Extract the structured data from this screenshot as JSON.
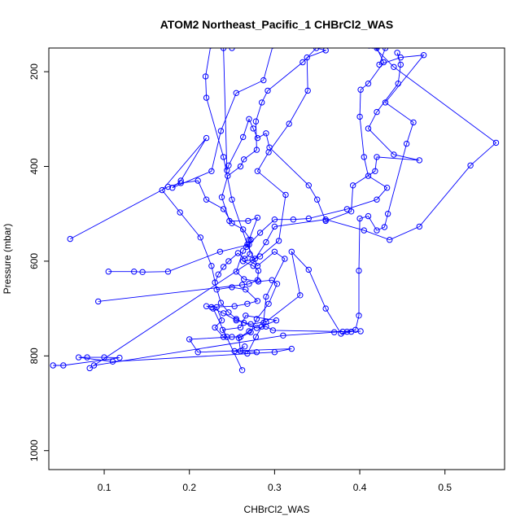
{
  "chart_data": {
    "type": "line",
    "title": "ATOM2 Northeast_Pacific_1 CHBrCl2_WAS",
    "xlabel": "CHBrCl2_WAS",
    "ylabel": "Pressure (mbar)",
    "xlim": [
      0.035,
      0.57
    ],
    "ylim": [
      1040,
      150
    ],
    "y_axis_reversed": true,
    "x_ticks": [
      0.1,
      0.2,
      0.3,
      0.4,
      0.5
    ],
    "x_tick_labels": [
      "0.1",
      "0.2",
      "0.3",
      "0.4",
      "0.5"
    ],
    "y_ticks": [
      200,
      400,
      600,
      800,
      1000
    ],
    "y_tick_labels": [
      "200",
      "400",
      "600",
      "800",
      "1000"
    ],
    "grid": false,
    "legend": "none",
    "marker": "open-circle",
    "color": "#0000ff",
    "series": [
      {
        "values": [
          [
            0.04,
            820
          ],
          [
            0.052,
            820
          ],
          [
            0.118,
            804
          ],
          [
            0.1,
            803
          ],
          [
            0.08,
            803
          ],
          [
            0.07,
            803
          ],
          [
            0.11,
            812
          ],
          [
            0.3,
            792
          ],
          [
            0.32,
            785
          ],
          [
            0.21,
            792
          ],
          [
            0.2,
            765
          ],
          [
            0.25,
            760
          ],
          [
            0.24,
            760
          ],
          [
            0.23,
            740
          ],
          [
            0.238,
            725
          ],
          [
            0.232,
            697
          ],
          [
            0.22,
            695
          ],
          [
            0.226,
            697
          ],
          [
            0.253,
            695
          ],
          [
            0.268,
            690
          ],
          [
            0.28,
            684
          ],
          [
            0.266,
            660
          ],
          [
            0.25,
            655
          ],
          [
            0.232,
            660
          ],
          [
            0.226,
            610
          ],
          [
            0.213,
            550
          ],
          [
            0.189,
            497
          ],
          [
            0.168,
            450
          ],
          [
            0.22,
            340
          ],
          [
            0.19,
            430
          ],
          [
            0.18,
            445
          ],
          [
            0.226,
            410
          ],
          [
            0.237,
            325
          ],
          [
            0.255,
            245
          ],
          [
            0.287,
            218
          ],
          [
            0.298,
            145
          ],
          [
            0.25,
            150
          ],
          [
            0.225,
            145
          ],
          [
            0.219,
            210
          ],
          [
            0.22,
            255
          ],
          [
            0.24,
            380
          ],
          [
            0.25,
            470
          ],
          [
            0.268,
            565
          ],
          [
            0.28,
            610
          ],
          [
            0.3,
            580
          ],
          [
            0.312,
            595
          ],
          [
            0.29,
            675
          ],
          [
            0.287,
            730
          ],
          [
            0.27,
            748
          ],
          [
            0.26,
            760
          ],
          [
            0.244,
            760
          ],
          [
            0.239,
            745
          ],
          [
            0.26,
            740
          ],
          [
            0.266,
            715
          ],
          [
            0.302,
            725
          ],
          [
            0.285,
            738
          ],
          [
            0.278,
            760
          ],
          [
            0.268,
            795
          ],
          [
            0.253,
            790
          ],
          [
            0.265,
            780
          ]
        ]
      },
      {
        "values": [
          [
            0.093,
            685
          ],
          [
            0.262,
            650
          ],
          [
            0.27,
            648
          ],
          [
            0.28,
            640
          ],
          [
            0.281,
            620
          ],
          [
            0.275,
            610
          ],
          [
            0.263,
            600
          ],
          [
            0.274,
            597
          ],
          [
            0.283,
            590
          ],
          [
            0.305,
            557
          ],
          [
            0.313,
            460
          ],
          [
            0.28,
            410
          ],
          [
            0.293,
            370
          ],
          [
            0.317,
            310
          ],
          [
            0.339,
            240
          ],
          [
            0.338,
            170
          ],
          [
            0.36,
            155
          ],
          [
            0.349,
            150
          ],
          [
            0.333,
            180
          ],
          [
            0.292,
            240
          ],
          [
            0.285,
            265
          ],
          [
            0.278,
            305
          ],
          [
            0.279,
            365
          ],
          [
            0.264,
            385
          ],
          [
            0.26,
            400
          ],
          [
            0.245,
            420
          ],
          [
            0.238,
            465
          ],
          [
            0.247,
            515
          ],
          [
            0.269,
            515
          ],
          [
            0.28,
            508
          ],
          [
            0.27,
            555
          ],
          [
            0.271,
            585
          ],
          [
            0.265,
            595
          ],
          [
            0.257,
            583
          ],
          [
            0.246,
            600
          ],
          [
            0.24,
            612
          ],
          [
            0.234,
            628
          ],
          [
            0.23,
            645
          ],
          [
            0.237,
            688
          ],
          [
            0.246,
            708
          ],
          [
            0.255,
            722
          ],
          [
            0.264,
            730
          ],
          [
            0.279,
            741
          ],
          [
            0.29,
            738
          ],
          [
            0.298,
            746
          ],
          [
            0.385,
            749
          ],
          [
            0.401,
            748
          ]
        ]
      },
      {
        "values": [
          [
            0.06,
            553
          ],
          [
            0.175,
            443
          ],
          [
            0.19,
            435
          ],
          [
            0.21,
            430
          ],
          [
            0.22,
            470
          ],
          [
            0.24,
            490
          ],
          [
            0.25,
            520
          ],
          [
            0.263,
            533
          ],
          [
            0.272,
            555
          ],
          [
            0.267,
            570
          ],
          [
            0.263,
            578
          ],
          [
            0.255,
            622
          ],
          [
            0.264,
            638
          ],
          [
            0.281,
            643
          ],
          [
            0.297,
            640
          ],
          [
            0.303,
            648
          ],
          [
            0.293,
            690
          ],
          [
            0.279,
            722
          ],
          [
            0.272,
            750
          ],
          [
            0.258,
            762
          ],
          [
            0.26,
            790
          ],
          [
            0.279,
            792
          ]
        ]
      },
      {
        "values": [
          [
            0.105,
            622
          ],
          [
            0.135,
            622
          ],
          [
            0.145,
            623
          ],
          [
            0.175,
            622
          ],
          [
            0.236,
            580
          ],
          [
            0.27,
            565
          ],
          [
            0.283,
            540
          ],
          [
            0.3,
            512
          ],
          [
            0.322,
            512
          ],
          [
            0.34,
            510
          ],
          [
            0.385,
            490
          ],
          [
            0.42,
            470
          ],
          [
            0.432,
            445
          ],
          [
            0.41,
            420
          ],
          [
            0.405,
            380
          ],
          [
            0.4,
            295
          ],
          [
            0.401,
            238
          ],
          [
            0.41,
            225
          ],
          [
            0.428,
            180
          ],
          [
            0.42,
            150
          ],
          [
            0.411,
            145
          ]
        ]
      },
      {
        "values": [
          [
            0.088,
            820
          ],
          [
            0.31,
            757
          ],
          [
            0.37,
            750
          ],
          [
            0.38,
            749
          ],
          [
            0.395,
            745
          ],
          [
            0.399,
            715
          ],
          [
            0.399,
            620
          ],
          [
            0.4,
            510
          ],
          [
            0.41,
            505
          ],
          [
            0.42,
            535
          ],
          [
            0.429,
            528
          ],
          [
            0.433,
            500
          ],
          [
            0.455,
            352
          ],
          [
            0.463,
            307
          ],
          [
            0.43,
            265
          ],
          [
            0.475,
            165
          ],
          [
            0.448,
            170
          ],
          [
            0.423,
            185
          ],
          [
            0.43,
            150
          ],
          [
            0.421,
            146
          ]
        ]
      },
      {
        "values": [
          [
            0.083,
            826
          ],
          [
            0.277,
            595
          ],
          [
            0.29,
            560
          ],
          [
            0.3,
            527
          ],
          [
            0.36,
            512
          ],
          [
            0.405,
            535
          ],
          [
            0.435,
            555
          ],
          [
            0.47,
            527
          ],
          [
            0.53,
            398
          ],
          [
            0.56,
            350
          ],
          [
            0.44,
            190
          ],
          [
            0.415,
            145
          ]
        ]
      },
      {
        "values": [
          [
            0.262,
            830
          ],
          [
            0.228,
            700
          ],
          [
            0.24,
            710
          ],
          [
            0.255,
            725
          ],
          [
            0.272,
            733
          ],
          [
            0.29,
            728
          ],
          [
            0.33,
            672
          ],
          [
            0.32,
            580
          ],
          [
            0.34,
            618
          ],
          [
            0.36,
            700
          ],
          [
            0.378,
            753
          ],
          [
            0.39,
            749
          ]
        ]
      },
      {
        "values": [
          [
            0.24,
            150
          ],
          [
            0.244,
            408
          ],
          [
            0.246,
            398
          ],
          [
            0.263,
            338
          ],
          [
            0.27,
            300
          ],
          [
            0.275,
            320
          ],
          [
            0.28,
            340
          ],
          [
            0.29,
            330
          ],
          [
            0.294,
            360
          ],
          [
            0.34,
            440
          ],
          [
            0.35,
            470
          ],
          [
            0.36,
            515
          ],
          [
            0.39,
            495
          ],
          [
            0.392,
            440
          ],
          [
            0.418,
            410
          ],
          [
            0.42,
            380
          ],
          [
            0.47,
            387
          ],
          [
            0.44,
            375
          ],
          [
            0.41,
            320
          ],
          [
            0.42,
            285
          ],
          [
            0.445,
            225
          ],
          [
            0.448,
            185
          ],
          [
            0.444,
            160
          ]
        ]
      }
    ]
  }
}
